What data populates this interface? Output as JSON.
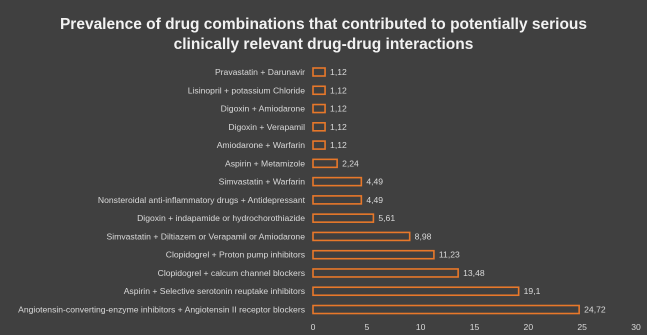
{
  "chart_data": {
    "type": "bar",
    "orientation": "horizontal",
    "title": "Prevalence of drug combinations that contributed to potentially serious clinically relevant drug-drug interactions",
    "categories": [
      "Pravastatin + Darunavir",
      "Lisinopril + potassium Chloride",
      "Digoxin + Amiodarone",
      "Digoxin + Verapamil",
      "Amiodarone + Warfarin",
      "Aspirin + Metamizole",
      "Simvastatin + Warfarin",
      "Nonsteroidal anti-inflammatory drugs + Antidepressant",
      "Digoxin + indapamide or hydrochorothiazide",
      "Simvastatin + Diltiazem or Verapamil or Amiodarone",
      "Clopidogrel + Proton pump inhibitors",
      "Clopidogrel + calcum channel blockers",
      "Aspirin + Selective serotonin reuptake inhibitors",
      "Angiotensin-converting-enzyme inhibitors + Angiotensin II receptor blockers"
    ],
    "values": [
      1.12,
      1.12,
      1.12,
      1.12,
      1.12,
      2.24,
      4.49,
      4.49,
      5.61,
      8.98,
      11.23,
      13.48,
      19.1,
      24.72
    ],
    "value_labels": [
      "1,12",
      "1,12",
      "1,12",
      "1,12",
      "1,12",
      "2,24",
      "4,49",
      "4,49",
      "5,61",
      "8,98",
      "11,23",
      "13,48",
      "19,1",
      "24,72"
    ],
    "x_ticks": [
      0,
      5,
      10,
      15,
      20,
      25,
      30
    ],
    "xlim": [
      0,
      30
    ],
    "xlabel": "",
    "ylabel": "",
    "grid": false,
    "legend": "none",
    "colors": {
      "background": "#404040",
      "bar_fill": "#3f3f3f",
      "bar_stroke": "#e8782a",
      "text": "#d9d9d9",
      "title": "#f2f2f2"
    }
  }
}
